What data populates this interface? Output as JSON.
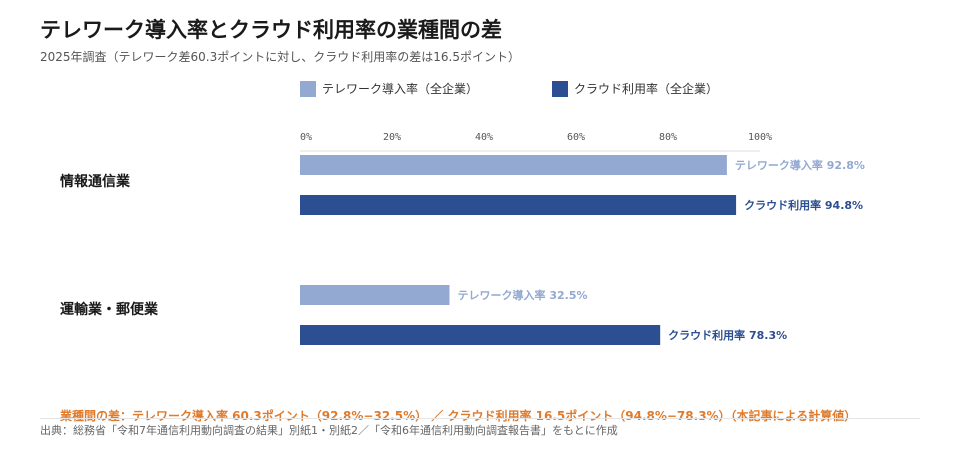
{
  "title": "テレワーク導入率とクラウド利用率の業種間の差",
  "subtitle": "2025年調査（テレワーク差60.3ポイントに対し、クラウド利用率の差は16.5ポイント）",
  "legend": [
    {
      "label": "テレワーク導入率（全企業）",
      "color": "#93a9d1"
    },
    {
      "label": "クラウド利用率（全企業）",
      "color": "#2c4f91"
    }
  ],
  "chart_data": {
    "type": "bar",
    "orientation": "horizontal",
    "xlim": [
      0,
      100
    ],
    "ticks": [
      "0%",
      "20%",
      "40%",
      "60%",
      "80%",
      "100%"
    ],
    "tick_values": [
      0,
      20,
      40,
      60,
      80,
      100
    ],
    "categories": [
      "情報通信業",
      "運輸業・郵便業"
    ],
    "series": [
      {
        "name": "テレワーク導入率（全企業）",
        "color": "#93a9d1",
        "values": [
          92.8,
          32.5
        ],
        "data_labels": [
          "テレワーク導入率 92.8%",
          "テレワーク導入率 32.5%"
        ]
      },
      {
        "name": "クラウド利用率（全企業）",
        "color": "#2c4f91",
        "values": [
          94.8,
          78.3
        ],
        "data_labels": [
          "クラウド利用率 94.8%",
          "クラウド利用率 78.3%"
        ]
      }
    ],
    "legend_position": "top"
  },
  "diff_note": "業種間の差：テレワーク導入率 60.3ポイント（92.8%−32.5%） ／ クラウド利用率 16.5ポイント（94.8%−78.3%）（本記事による計算値）",
  "source": "出典：総務省「令和7年通信利用動向調査の結果」別紙1・別紙2／「令和6年通信利用動向調査報告書」をもとに作成"
}
